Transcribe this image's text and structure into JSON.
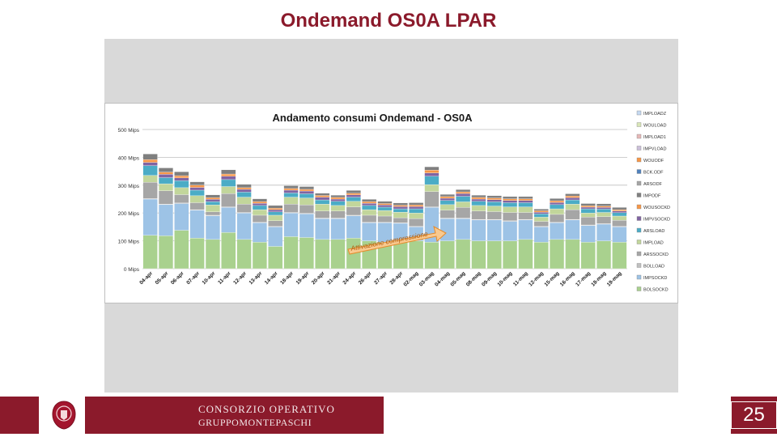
{
  "slide": {
    "title": "Ondemand OS0A LPAR",
    "page_number": "25",
    "footer_line1": "CONSORZIO OPERATIVO",
    "footer_line2": "GRUPPOMONTEPASCHI"
  },
  "colors": {
    "brand": "#8b1a2b"
  },
  "chart_data": {
    "type": "bar",
    "stacked": true,
    "title": "Andamento consumi Ondemand - OS0A",
    "ylabel": "",
    "xlabel": "",
    "ylim": [
      0,
      500
    ],
    "yticks": [
      "0 Mips",
      "100 Mips",
      "200 Mips",
      "300 Mips",
      "400 Mips",
      "500 Mips"
    ],
    "yticks_values": [
      0,
      100,
      200,
      300,
      400,
      500
    ],
    "legend_position": "right",
    "annotation": "Attivazione compressione",
    "categories": [
      "04-apr",
      "05-apr",
      "06-apr",
      "07-apr",
      "10-apr",
      "11-apr",
      "12-apr",
      "13-apr",
      "14-apr",
      "18-apr",
      "19-apr",
      "20-apr",
      "21-apr",
      "24-apr",
      "26-apr",
      "27-apr",
      "28-apr",
      "02-mag",
      "03-mag",
      "04-mag",
      "05-mag",
      "08-mag",
      "09-mag",
      "10-mag",
      "11-mag",
      "12-mag",
      "15-mag",
      "16-mag",
      "17-mag",
      "18-mag",
      "19-mag"
    ],
    "legend": [
      "IMPLOADZ",
      "WOULOAD",
      "IMPLOAD1",
      "IMPVLOAD",
      "WOUODF",
      "BCK.ODF",
      "ARSODF",
      "IMPODF",
      "WOUSOCKD",
      "IMPVSOCKD",
      "ARSLOAD",
      "IMPLOAD",
      "ARSSOCKD",
      "BOLLOAD",
      "IMPSOCKD",
      "BOLSOCKD"
    ],
    "series": [
      {
        "name": "BOLSOCKD",
        "color": "#a9d18e",
        "values": [
          120,
          118,
          138,
          110,
          105,
          130,
          105,
          95,
          80,
          115,
          112,
          105,
          105,
          110,
          100,
          95,
          98,
          100,
          95,
          100,
          105,
          100,
          100,
          100,
          105,
          95,
          105,
          105,
          95,
          100,
          95
        ]
      },
      {
        "name": "IMPSOCKD",
        "color": "#9dc3e6",
        "values": [
          130,
          112,
          96,
          100,
          85,
          90,
          95,
          70,
          70,
          85,
          85,
          75,
          75,
          80,
          65,
          70,
          65,
          50,
          125,
          80,
          75,
          75,
          75,
          70,
          70,
          55,
          60,
          70,
          60,
          60,
          55
        ]
      },
      {
        "name": "BOLLOAD",
        "color": "#c0c0c0",
        "values": [
          2,
          2,
          2,
          2,
          2,
          2,
          2,
          2,
          2,
          2,
          2,
          2,
          2,
          2,
          2,
          2,
          2,
          2,
          2,
          2,
          2,
          2,
          2,
          2,
          2,
          2,
          2,
          2,
          2,
          2,
          2
        ]
      },
      {
        "name": "ARSSOCKD",
        "color": "#a6a6a6",
        "values": [
          58,
          48,
          30,
          25,
          12,
          48,
          30,
          25,
          20,
          30,
          30,
          25,
          25,
          30,
          25,
          22,
          18,
          28,
          55,
          28,
          38,
          30,
          28,
          30,
          25,
          18,
          28,
          35,
          28,
          25,
          22
        ]
      },
      {
        "name": "IMPLOAD",
        "color": "#c2d69b",
        "values": [
          25,
          25,
          25,
          25,
          25,
          25,
          25,
          20,
          20,
          25,
          25,
          25,
          20,
          20,
          20,
          20,
          20,
          20,
          25,
          20,
          20,
          20,
          20,
          20,
          20,
          15,
          20,
          20,
          15,
          15,
          15
        ]
      },
      {
        "name": "ARSLOAD",
        "color": "#4bacc6",
        "values": [
          35,
          22,
          25,
          20,
          12,
          25,
          18,
          15,
          12,
          15,
          15,
          15,
          15,
          15,
          15,
          12,
          12,
          15,
          30,
          15,
          20,
          15,
          15,
          15,
          15,
          12,
          15,
          15,
          15,
          12,
          12
        ]
      },
      {
        "name": "IMPVSOCKD",
        "color": "#8064a2",
        "values": [
          12,
          12,
          10,
          10,
          8,
          12,
          10,
          8,
          8,
          10,
          10,
          10,
          8,
          8,
          8,
          8,
          8,
          8,
          12,
          8,
          10,
          8,
          8,
          8,
          8,
          6,
          8,
          8,
          6,
          6,
          6
        ]
      },
      {
        "name": "WOUSOCKD",
        "color": "#f79646",
        "values": [
          10,
          8,
          8,
          8,
          6,
          8,
          6,
          6,
          5,
          6,
          6,
          6,
          6,
          6,
          6,
          5,
          5,
          6,
          10,
          6,
          6,
          6,
          6,
          6,
          6,
          5,
          6,
          6,
          5,
          5,
          5
        ]
      },
      {
        "name": "IMPODF",
        "color": "#7f7f7f",
        "values": [
          20,
          15,
          14,
          12,
          10,
          15,
          12,
          10,
          10,
          10,
          10,
          8,
          8,
          10,
          8,
          8,
          8,
          8,
          12,
          8,
          8,
          8,
          8,
          8,
          8,
          6,
          8,
          8,
          8,
          8,
          8
        ]
      }
    ]
  }
}
